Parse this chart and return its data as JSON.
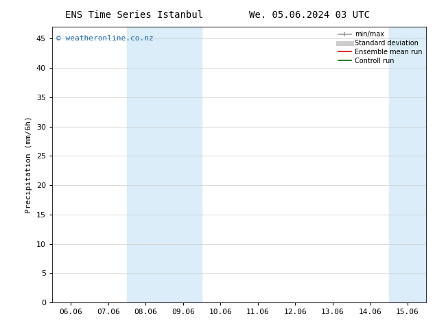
{
  "title_left": "ENS Time Series Istanbul",
  "title_right": "We. 05.06.2024 03 UTC",
  "ylabel": "Precipitation (mm/6h)",
  "xlim_labels": [
    "06.06",
    "07.06",
    "08.06",
    "09.06",
    "10.06",
    "11.06",
    "12.06",
    "13.06",
    "14.06",
    "15.06"
  ],
  "ylim": [
    0,
    47
  ],
  "yticks": [
    0,
    5,
    10,
    15,
    20,
    25,
    30,
    35,
    40,
    45
  ],
  "watermark": "© weatheronline.co.nz",
  "watermark_color": "#1a6aad",
  "legend_items": [
    {
      "label": "min/max",
      "color": "#999999",
      "lw": 1.2
    },
    {
      "label": "Standard deviation",
      "color": "#cccccc",
      "lw": 5
    },
    {
      "label": "Ensemble mean run",
      "color": "#dd0000",
      "lw": 1.2
    },
    {
      "label": "Controll run",
      "color": "#006600",
      "lw": 1.2
    }
  ],
  "background_color": "#ffffff",
  "shade_color": "#daedf8",
  "band1_left_label": "08.06",
  "band1_right_label": "09.06",
  "band2_left_label": "09.06",
  "band2_right_label": "10.06",
  "band3_left_label": "15.06",
  "band3_right_label_end": true,
  "tick_fontsize": 8,
  "ylabel_fontsize": 8,
  "title_fontsize": 10,
  "watermark_fontsize": 8
}
